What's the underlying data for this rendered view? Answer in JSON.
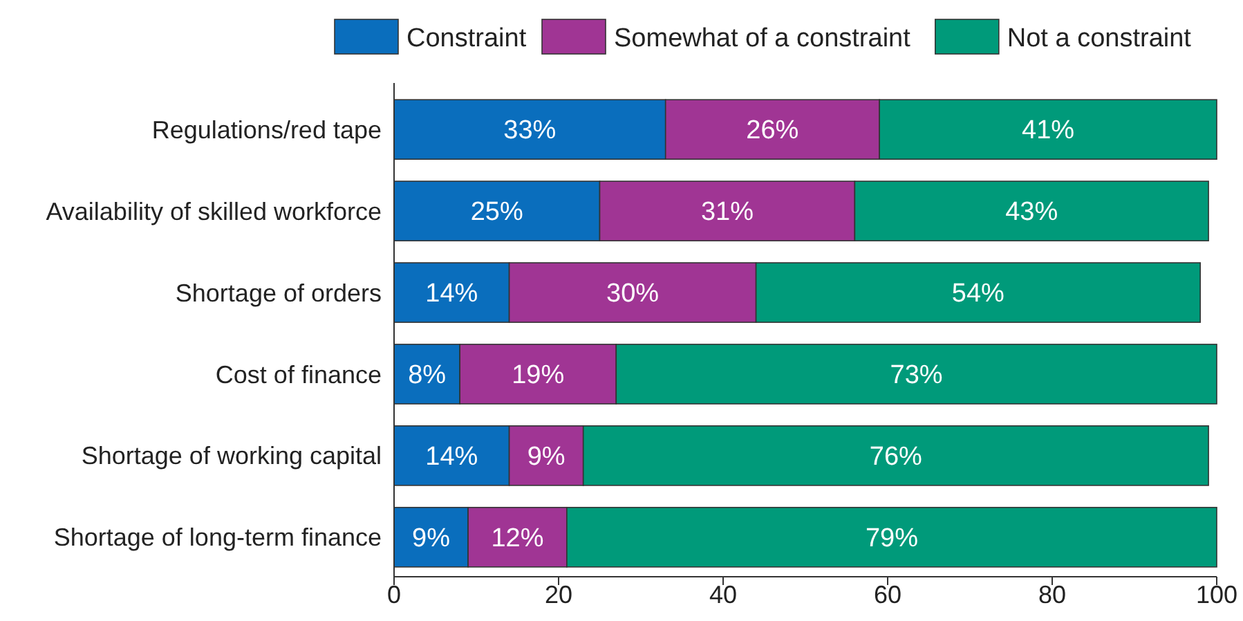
{
  "chart_data": {
    "type": "bar",
    "orientation": "horizontal",
    "stacked": true,
    "legend": "top",
    "categories": [
      "Regulations/red tape",
      "Availability of skilled workforce",
      "Shortage of orders",
      "Cost of finance",
      "Shortage of working capital",
      "Shortage of long-term finance"
    ],
    "series": [
      {
        "name": "Constraint",
        "color": "#0a6ebd",
        "values": [
          33,
          25,
          14,
          8,
          14,
          9
        ],
        "value_labels": [
          "33%",
          "25%",
          "14%",
          "8%",
          "14%",
          "9%"
        ]
      },
      {
        "name": "Somewhat of a constraint",
        "color": "#a03594",
        "values": [
          26,
          31,
          30,
          19,
          9,
          12
        ],
        "value_labels": [
          "26%",
          "31%",
          "30%",
          "19%",
          "9%",
          "12%"
        ]
      },
      {
        "name": "Not a constraint",
        "color": "#009a7a",
        "values": [
          41,
          43,
          54,
          73,
          76,
          79
        ],
        "value_labels": [
          "41%",
          "43%",
          "54%",
          "73%",
          "76%",
          "79%"
        ]
      }
    ],
    "xlim": [
      0,
      100
    ],
    "xticks": [
      0,
      20,
      40,
      60,
      80,
      100
    ]
  }
}
